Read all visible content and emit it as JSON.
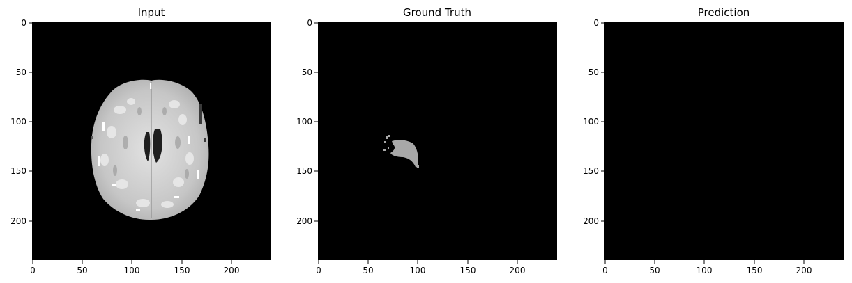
{
  "figure": {
    "background": "#ffffff",
    "panels": [
      {
        "id": "input",
        "title": "Input",
        "image": "brain-mri-slice-grayscale",
        "xticks": [
          "0",
          "50",
          "100",
          "150",
          "200"
        ],
        "yticks": [
          "0",
          "50",
          "100",
          "150",
          "200"
        ]
      },
      {
        "id": "ground-truth",
        "title": "Ground Truth",
        "image": "segmentation-mask-gray-lesion",
        "xticks": [
          "0",
          "50",
          "100",
          "150",
          "200"
        ],
        "yticks": [
          "0",
          "50",
          "100",
          "150",
          "200"
        ]
      },
      {
        "id": "prediction",
        "title": "Prediction",
        "image": "empty-black-mask",
        "xticks": [
          "0",
          "50",
          "100",
          "150",
          "200"
        ],
        "yticks": [
          "0",
          "50",
          "100",
          "150",
          "200"
        ]
      }
    ],
    "colors": {
      "image_background": "#000000",
      "mask_lesion": "#a8a8a8",
      "brain_tissue": "#c8c8c8",
      "axis_text": "#000000"
    }
  }
}
